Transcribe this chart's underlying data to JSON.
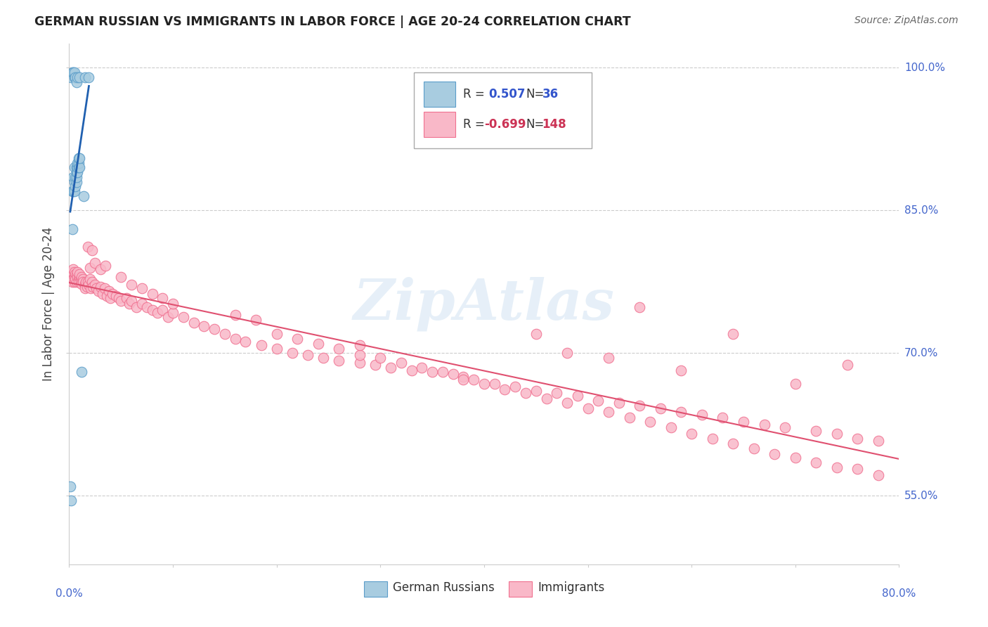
{
  "title": "GERMAN RUSSIAN VS IMMIGRANTS IN LABOR FORCE | AGE 20-24 CORRELATION CHART",
  "source": "Source: ZipAtlas.com",
  "ylabel": "In Labor Force | Age 20-24",
  "ytick_labels": [
    "55.0%",
    "70.0%",
    "85.0%",
    "100.0%"
  ],
  "ytick_values": [
    0.55,
    0.7,
    0.85,
    1.0
  ],
  "blue_color": "#a8cce0",
  "blue_edge": "#5b9dc9",
  "pink_color": "#f9b8c8",
  "pink_edge": "#f07090",
  "trend_blue": "#2060b0",
  "trend_pink": "#e05070",
  "watermark": "ZipAtlas",
  "xmin": 0.0,
  "xmax": 0.8,
  "ymin": 0.478,
  "ymax": 1.025,
  "blue_scatter_x": [
    0.001,
    0.002,
    0.002,
    0.003,
    0.003,
    0.003,
    0.004,
    0.004,
    0.004,
    0.005,
    0.005,
    0.005,
    0.005,
    0.005,
    0.006,
    0.006,
    0.006,
    0.007,
    0.007,
    0.007,
    0.007,
    0.007,
    0.008,
    0.008,
    0.008,
    0.008,
    0.009,
    0.009,
    0.009,
    0.01,
    0.01,
    0.01,
    0.012,
    0.014,
    0.015,
    0.019
  ],
  "blue_scatter_y": [
    0.56,
    0.545,
    0.99,
    0.83,
    0.87,
    0.995,
    0.87,
    0.885,
    0.995,
    0.87,
    0.88,
    0.895,
    0.99,
    0.995,
    0.875,
    0.885,
    0.99,
    0.88,
    0.885,
    0.89,
    0.895,
    0.985,
    0.89,
    0.895,
    0.9,
    0.99,
    0.895,
    0.9,
    0.905,
    0.895,
    0.905,
    0.99,
    0.68,
    0.865,
    0.99,
    0.99
  ],
  "pink_scatter_x": [
    0.001,
    0.002,
    0.003,
    0.003,
    0.004,
    0.004,
    0.005,
    0.005,
    0.005,
    0.006,
    0.006,
    0.007,
    0.007,
    0.008,
    0.008,
    0.009,
    0.009,
    0.01,
    0.01,
    0.011,
    0.011,
    0.012,
    0.012,
    0.013,
    0.013,
    0.015,
    0.015,
    0.016,
    0.017,
    0.018,
    0.019,
    0.02,
    0.021,
    0.022,
    0.023,
    0.025,
    0.026,
    0.028,
    0.03,
    0.032,
    0.034,
    0.036,
    0.038,
    0.04,
    0.042,
    0.045,
    0.048,
    0.05,
    0.055,
    0.058,
    0.06,
    0.065,
    0.07,
    0.075,
    0.08,
    0.085,
    0.09,
    0.095,
    0.1,
    0.11,
    0.12,
    0.13,
    0.14,
    0.15,
    0.16,
    0.17,
    0.185,
    0.2,
    0.215,
    0.23,
    0.245,
    0.26,
    0.28,
    0.295,
    0.31,
    0.33,
    0.35,
    0.37,
    0.39,
    0.41,
    0.43,
    0.45,
    0.47,
    0.49,
    0.51,
    0.53,
    0.55,
    0.57,
    0.59,
    0.61,
    0.63,
    0.65,
    0.67,
    0.69,
    0.72,
    0.74,
    0.76,
    0.78,
    0.02,
    0.025,
    0.03,
    0.035,
    0.018,
    0.022,
    0.05,
    0.06,
    0.07,
    0.08,
    0.09,
    0.1,
    0.2,
    0.22,
    0.24,
    0.26,
    0.28,
    0.3,
    0.32,
    0.34,
    0.36,
    0.38,
    0.4,
    0.42,
    0.44,
    0.46,
    0.48,
    0.5,
    0.52,
    0.54,
    0.56,
    0.58,
    0.6,
    0.62,
    0.64,
    0.66,
    0.68,
    0.7,
    0.72,
    0.74,
    0.76,
    0.78,
    0.16,
    0.18,
    0.28,
    0.38,
    0.45,
    0.48,
    0.52,
    0.55,
    0.59,
    0.64,
    0.7,
    0.75
  ],
  "pink_scatter_y": [
    0.78,
    0.782,
    0.775,
    0.785,
    0.778,
    0.788,
    0.78,
    0.785,
    0.775,
    0.783,
    0.778,
    0.782,
    0.775,
    0.78,
    0.785,
    0.778,
    0.775,
    0.78,
    0.783,
    0.778,
    0.775,
    0.78,
    0.773,
    0.778,
    0.775,
    0.773,
    0.768,
    0.775,
    0.77,
    0.775,
    0.772,
    0.778,
    0.768,
    0.775,
    0.77,
    0.772,
    0.768,
    0.765,
    0.77,
    0.762,
    0.768,
    0.76,
    0.765,
    0.758,
    0.762,
    0.76,
    0.758,
    0.755,
    0.758,
    0.752,
    0.755,
    0.748,
    0.752,
    0.748,
    0.745,
    0.742,
    0.745,
    0.738,
    0.742,
    0.738,
    0.732,
    0.728,
    0.725,
    0.72,
    0.715,
    0.712,
    0.708,
    0.705,
    0.7,
    0.698,
    0.695,
    0.692,
    0.69,
    0.688,
    0.685,
    0.682,
    0.68,
    0.678,
    0.672,
    0.668,
    0.665,
    0.66,
    0.658,
    0.655,
    0.65,
    0.648,
    0.645,
    0.642,
    0.638,
    0.635,
    0.632,
    0.628,
    0.625,
    0.622,
    0.618,
    0.615,
    0.61,
    0.608,
    0.79,
    0.795,
    0.788,
    0.792,
    0.812,
    0.808,
    0.78,
    0.772,
    0.768,
    0.762,
    0.758,
    0.752,
    0.72,
    0.715,
    0.71,
    0.705,
    0.698,
    0.695,
    0.69,
    0.685,
    0.68,
    0.675,
    0.668,
    0.662,
    0.658,
    0.652,
    0.648,
    0.642,
    0.638,
    0.632,
    0.628,
    0.622,
    0.615,
    0.61,
    0.605,
    0.6,
    0.594,
    0.59,
    0.585,
    0.58,
    0.578,
    0.572,
    0.74,
    0.735,
    0.708,
    0.672,
    0.72,
    0.7,
    0.695,
    0.748,
    0.682,
    0.72,
    0.668,
    0.688
  ]
}
